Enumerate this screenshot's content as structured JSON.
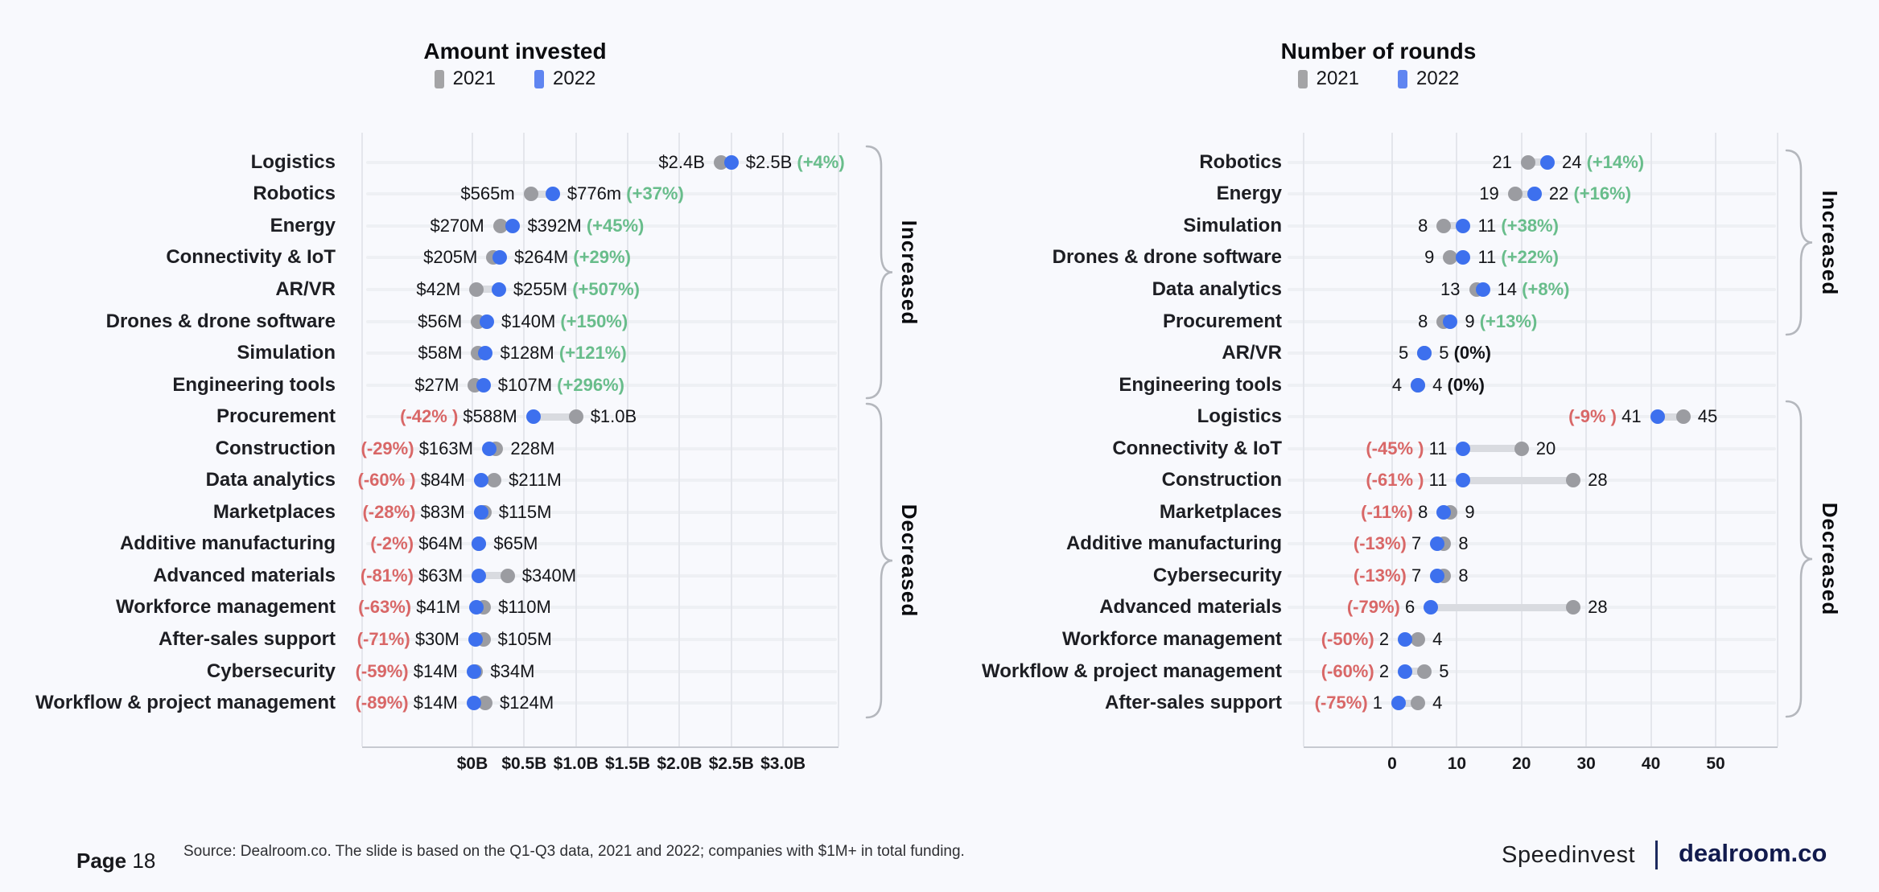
{
  "page": {
    "page_label": "Page",
    "page_number": "18",
    "source": "Source: Dealroom.co. The slide is based on the Q1-Q3 data, 2021 and 2022; companies with $1M+ in total funding.",
    "brand_left": "Speedinvest",
    "brand_right": "dealroom.co"
  },
  "colors": {
    "background": "#f8f9fd",
    "dot_2021": "#9b9ca1",
    "dot_2022": "#3d70ee",
    "legend_2021": "#a4a4a6",
    "legend_2022": "#5f85f1",
    "connector": "#d9dbe0",
    "green": "#68bd8b",
    "red": "#d96767",
    "gridline": "#e4e6ec",
    "brace": "#b4b7bd",
    "brand_navy": "#121b4d"
  },
  "chart_data": [
    {
      "type": "dumbbell",
      "title": "Amount invested",
      "legend": [
        "2021",
        "2022"
      ],
      "xlabel": "",
      "ylabel": "",
      "x_unit": "USD millions",
      "x_range": [
        0,
        3000
      ],
      "grid": true,
      "axis_ticks": [
        {
          "value": 0,
          "label": "$0B"
        },
        {
          "value": 500,
          "label": "$0.5B"
        },
        {
          "value": 1000,
          "label": "$1.0B"
        },
        {
          "value": 1500,
          "label": "$1.5B"
        },
        {
          "value": 2000,
          "label": "$2.0B"
        },
        {
          "value": 2500,
          "label": "$2.5B"
        },
        {
          "value": 3000,
          "label": "$3.0B"
        }
      ],
      "groups": [
        {
          "label": "Increased",
          "from": 0,
          "to": 7
        },
        {
          "label": "Decreased",
          "from": 8,
          "to": 17
        }
      ],
      "rows": [
        {
          "label": "Logistics",
          "v2021": 2400,
          "v2022": 2500,
          "label_2021": "$2.4B",
          "label_2022": "$2.5B",
          "pct": "(+4%)",
          "change": "up"
        },
        {
          "label": "Robotics",
          "v2021": 565,
          "v2022": 776,
          "label_2021": "$565m",
          "label_2022": "$776m",
          "pct": "(+37%)",
          "change": "up"
        },
        {
          "label": "Energy",
          "v2021": 270,
          "v2022": 392,
          "label_2021": "$270M",
          "label_2022": "$392M",
          "pct": "(+45%)",
          "change": "up"
        },
        {
          "label": "Connectivity & IoT",
          "v2021": 205,
          "v2022": 264,
          "label_2021": "$205M",
          "label_2022": "$264M",
          "pct": "(+29%)",
          "change": "up"
        },
        {
          "label": "AR/VR",
          "v2021": 42,
          "v2022": 255,
          "label_2021": "$42M",
          "label_2022": "$255M",
          "pct": "(+507%)",
          "change": "up"
        },
        {
          "label": "Drones & drone software",
          "v2021": 56,
          "v2022": 140,
          "label_2021": "$56M",
          "label_2022": "$140M",
          "pct": "(+150%)",
          "change": "up"
        },
        {
          "label": "Simulation",
          "v2021": 58,
          "v2022": 128,
          "label_2021": "$58M",
          "label_2022": "$128M",
          "pct": "(+121%)",
          "change": "up"
        },
        {
          "label": "Engineering tools",
          "v2021": 27,
          "v2022": 107,
          "label_2021": "$27M",
          "label_2022": "$107M",
          "pct": "(+296%)",
          "change": "up"
        },
        {
          "label": "Procurement",
          "v2021": 1000,
          "v2022": 588,
          "label_2021": "$1.0B",
          "label_2022": "$588M",
          "pct": "(-42% )",
          "change": "down"
        },
        {
          "label": "Construction",
          "v2021": 228,
          "v2022": 163,
          "label_2021": "228M",
          "label_2022": "$163M",
          "pct": "(-29%)",
          "change": "down"
        },
        {
          "label": "Data analytics",
          "v2021": 211,
          "v2022": 84,
          "label_2021": "$211M",
          "label_2022": "$84M",
          "pct": "(-60% )",
          "change": "down"
        },
        {
          "label": "Marketplaces",
          "v2021": 115,
          "v2022": 83,
          "label_2021": "$115M",
          "label_2022": "$83M",
          "pct": "(-28%)",
          "change": "down"
        },
        {
          "label": "Additive manufacturing",
          "v2021": 65,
          "v2022": 64,
          "label_2021": "$65M",
          "label_2022": "$64M",
          "pct": "(-2%)",
          "change": "down"
        },
        {
          "label": "Advanced materials",
          "v2021": 340,
          "v2022": 63,
          "label_2021": "$340M",
          "label_2022": "$63M",
          "pct": "(-81%)",
          "change": "down"
        },
        {
          "label": "Workforce management",
          "v2021": 110,
          "v2022": 41,
          "label_2021": "$110M",
          "label_2022": "$41M",
          "pct": "(-63%)",
          "change": "down"
        },
        {
          "label": "After-sales support",
          "v2021": 105,
          "v2022": 30,
          "label_2021": "$105M",
          "label_2022": "$30M",
          "pct": "(-71%)",
          "change": "down"
        },
        {
          "label": "Cybersecurity",
          "v2021": 34,
          "v2022": 14,
          "label_2021": "$34M",
          "label_2022": "$14M",
          "pct": "(-59%)",
          "change": "down"
        },
        {
          "label": "Workflow & project management",
          "v2021": 124,
          "v2022": 14,
          "label_2021": "$124M",
          "label_2022": "$14M",
          "pct": "(-89%)",
          "change": "down"
        }
      ]
    },
    {
      "type": "dumbbell",
      "title": "Number of rounds",
      "legend": [
        "2021",
        "2022"
      ],
      "xlabel": "",
      "ylabel": "",
      "x_unit": "rounds",
      "x_range": [
        0,
        50
      ],
      "grid": true,
      "axis_ticks": [
        {
          "value": 0,
          "label": "0"
        },
        {
          "value": 10,
          "label": "10"
        },
        {
          "value": 20,
          "label": "20"
        },
        {
          "value": 30,
          "label": "30"
        },
        {
          "value": 40,
          "label": "40"
        },
        {
          "value": 50,
          "label": "50"
        }
      ],
      "groups": [
        {
          "label": "Increased",
          "from": 0,
          "to": 5
        },
        {
          "label": "Decreased",
          "from": 8,
          "to": 17
        }
      ],
      "rows": [
        {
          "label": "Robotics",
          "v2021": 21,
          "v2022": 24,
          "label_2021": "21",
          "label_2022": "24",
          "pct": "(+14%)",
          "change": "up"
        },
        {
          "label": "Energy",
          "v2021": 19,
          "v2022": 22,
          "label_2021": "19",
          "label_2022": "22",
          "pct": "(+16%)",
          "change": "up"
        },
        {
          "label": "Simulation",
          "v2021": 8,
          "v2022": 11,
          "label_2021": "8",
          "label_2022": "11",
          "pct": "(+38%)",
          "change": "up"
        },
        {
          "label": "Drones & drone software",
          "v2021": 9,
          "v2022": 11,
          "label_2021": "9",
          "label_2022": "11",
          "pct": "(+22%)",
          "change": "up"
        },
        {
          "label": "Data analytics",
          "v2021": 13,
          "v2022": 14,
          "label_2021": "13",
          "label_2022": "14",
          "pct": "(+8%)",
          "change": "up"
        },
        {
          "label": "Procurement",
          "v2021": 8,
          "v2022": 9,
          "label_2021": "8",
          "label_2022": "9",
          "pct": "(+13%)",
          "change": "up"
        },
        {
          "label": "AR/VR",
          "v2021": 5,
          "v2022": 5,
          "label_2021": "5",
          "label_2022": "5",
          "pct": "(0%)",
          "change": "flat"
        },
        {
          "label": "Engineering tools",
          "v2021": 4,
          "v2022": 4,
          "label_2021": "4",
          "label_2022": "4",
          "pct": "(0%)",
          "change": "flat"
        },
        {
          "label": "Logistics",
          "v2021": 45,
          "v2022": 41,
          "label_2021": "45",
          "label_2022": "41",
          "pct": "(-9% )",
          "change": "down"
        },
        {
          "label": "Connectivity & IoT",
          "v2021": 20,
          "v2022": 11,
          "label_2021": "20",
          "label_2022": "11",
          "pct": "(-45% )",
          "change": "down"
        },
        {
          "label": "Construction",
          "v2021": 28,
          "v2022": 11,
          "label_2021": "28",
          "label_2022": "11",
          "pct": "(-61% )",
          "change": "down"
        },
        {
          "label": "Marketplaces",
          "v2021": 9,
          "v2022": 8,
          "label_2021": "9",
          "label_2022": "8",
          "pct": "(-11%)",
          "change": "down"
        },
        {
          "label": "Additive manufacturing",
          "v2021": 8,
          "v2022": 7,
          "label_2021": "8",
          "label_2022": "7",
          "pct": "(-13%)",
          "change": "down"
        },
        {
          "label": "Cybersecurity",
          "v2021": 8,
          "v2022": 7,
          "label_2021": "8",
          "label_2022": "7",
          "pct": "(-13%)",
          "change": "down"
        },
        {
          "label": "Advanced materials",
          "v2021": 28,
          "v2022": 6,
          "label_2021": "28",
          "label_2022": "6",
          "pct": "(-79%)",
          "change": "down"
        },
        {
          "label": "Workforce management",
          "v2021": 4,
          "v2022": 2,
          "label_2021": "4",
          "label_2022": "2",
          "pct": "(-50%)",
          "change": "down"
        },
        {
          "label": "Workflow & project management",
          "v2021": 5,
          "v2022": 2,
          "label_2021": "5",
          "label_2022": "2",
          "pct": "(-60%)",
          "change": "down"
        },
        {
          "label": "After-sales support",
          "v2021": 4,
          "v2022": 1,
          "label_2021": "4",
          "label_2022": "1",
          "pct": "(-75%)",
          "change": "down"
        }
      ]
    }
  ]
}
